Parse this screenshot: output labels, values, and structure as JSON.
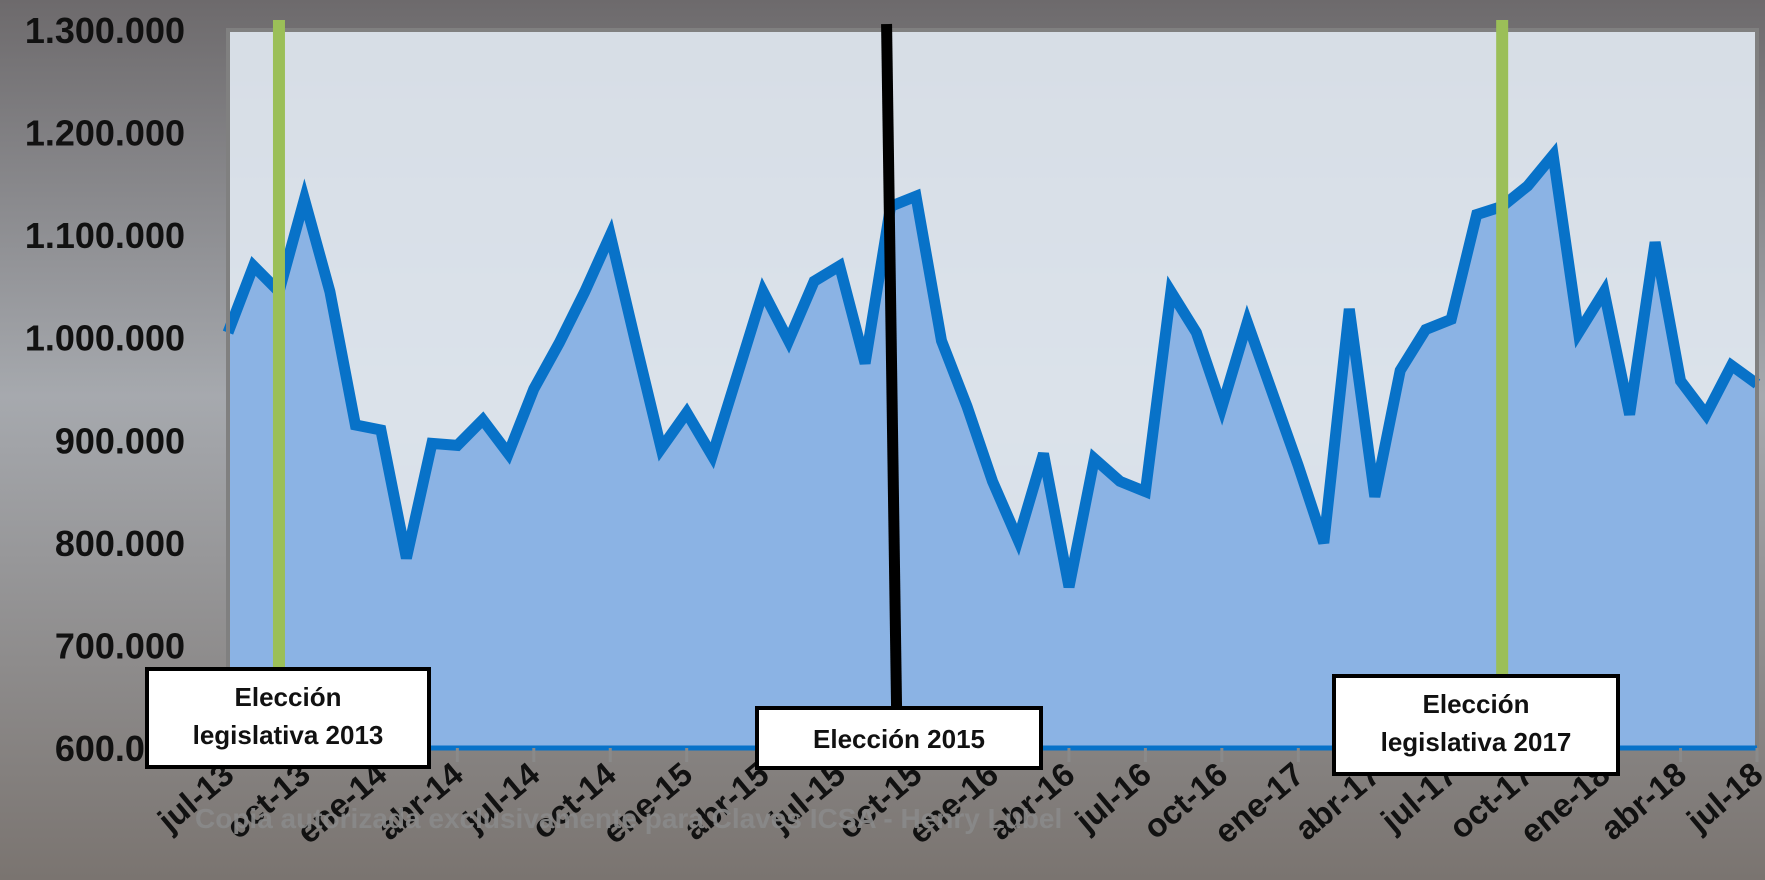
{
  "chart_data": {
    "type": "area",
    "title": "",
    "xlabel": "",
    "ylabel": "",
    "ylim": [
      600000,
      1300000
    ],
    "y_ticks": [
      600000,
      700000,
      800000,
      900000,
      1000000,
      1100000,
      1200000,
      1300000
    ],
    "y_tick_labels": [
      "600.000",
      "700.000",
      "800.000",
      "900.000",
      "1.000.000",
      "1.100.000",
      "1.200.000",
      "1.300.000"
    ],
    "x_tick_labels": [
      "jul-13",
      "oct-13",
      "ene-14",
      "abr-14",
      "jul-14",
      "oct-14",
      "ene-15",
      "abr-15",
      "jul-15",
      "oct-15",
      "ene-16",
      "abr-16",
      "jul-16",
      "oct-16",
      "ene-17",
      "abr-17",
      "jul-17",
      "oct-17",
      "ene-18",
      "abr-18",
      "jul-18"
    ],
    "x_tick_step_months": 3,
    "series": [
      {
        "color": "#0872c8",
        "fill": "#8bb3e4",
        "values": [
          1005000,
          1070000,
          1045000,
          1135000,
          1045000,
          915000,
          910000,
          785000,
          897000,
          895000,
          920000,
          887000,
          950000,
          995000,
          1045000,
          1100000,
          995000,
          892000,
          927000,
          885000,
          965000,
          1045000,
          997000,
          1055000,
          1070000,
          975000,
          1128000,
          1138000,
          997000,
          933000,
          860000,
          803000,
          887000,
          757000,
          882000,
          860000,
          850000,
          1045000,
          1005000,
          932000,
          1015000,
          945000,
          875000,
          800000,
          1028000,
          845000,
          968000,
          1008000,
          1018000,
          1120000,
          1128000,
          1148000,
          1178000,
          1005000,
          1045000,
          925000,
          1093000,
          958000,
          925000,
          973000,
          955000
        ]
      }
    ],
    "grid": false,
    "annotations": [
      {
        "label_lines": [
          "Elección",
          "legislativa 2013"
        ],
        "month_index": 2,
        "line_color": "#9bbf58"
      },
      {
        "label_lines": [
          "Elección 2015"
        ],
        "month_index": 26,
        "line_color": "#000000"
      },
      {
        "label_lines": [
          "Elección",
          "legislativa 2017"
        ],
        "month_index": 50,
        "line_color": "#9bbf58"
      }
    ]
  },
  "watermark": "Copia autorizada exclusivamente para Claves ICSA - Henry Lubel"
}
